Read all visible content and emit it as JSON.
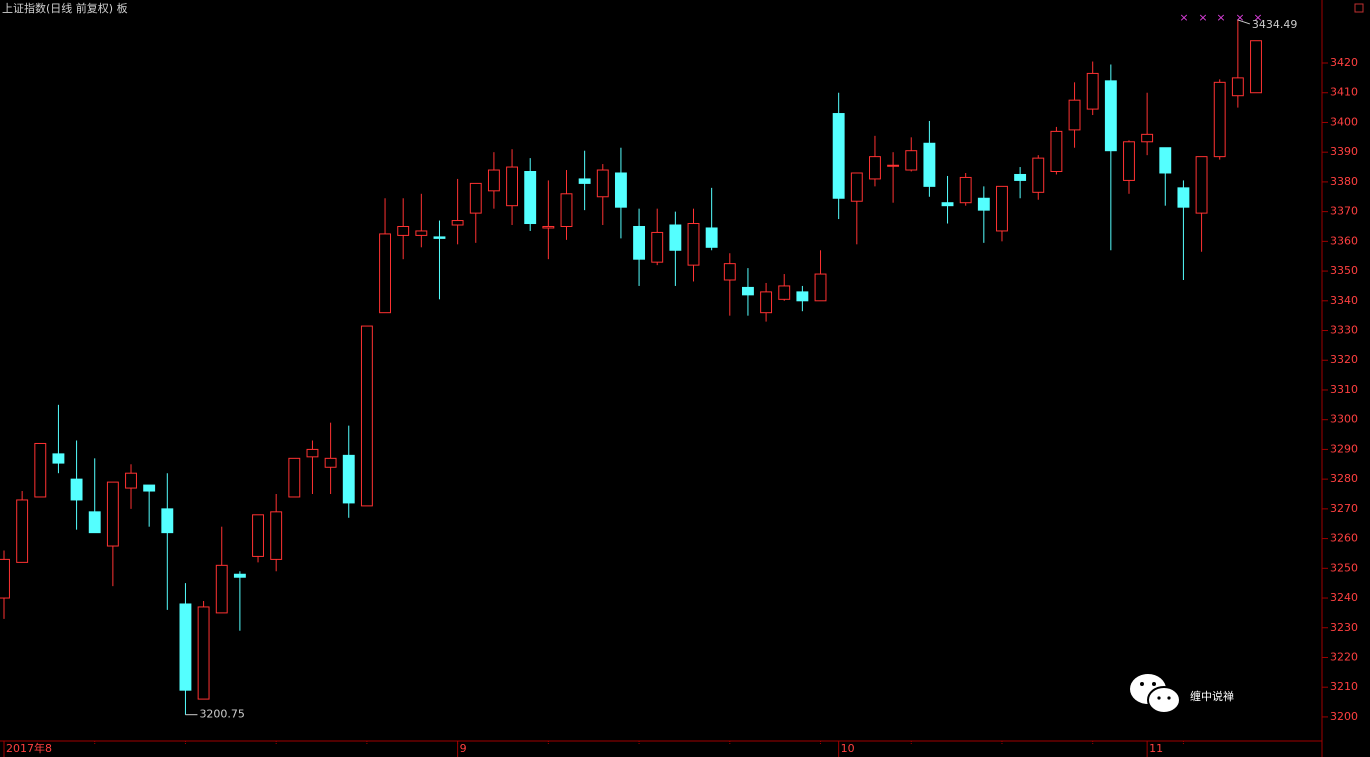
{
  "chart_data": {
    "type": "candlestick",
    "title": "上证指数(日线 前复权) 板",
    "watermark": "缠中说禅",
    "categories": [
      "2017年8",
      null,
      null,
      null,
      null,
      null,
      null,
      null,
      null,
      null,
      null,
      null,
      null,
      null,
      null,
      null,
      null,
      null,
      null,
      null,
      null,
      null,
      null,
      null,
      null,
      "9",
      null,
      null,
      null,
      null,
      null,
      null,
      null,
      null,
      null,
      null,
      null,
      null,
      null,
      null,
      null,
      null,
      null,
      null,
      null,
      null,
      "10",
      null,
      null,
      null,
      null,
      null,
      null,
      null,
      null,
      null,
      null,
      null,
      null,
      null,
      null,
      null,
      null,
      "11",
      null,
      null,
      null,
      null,
      null,
      null
    ],
    "open": [
      3240,
      3252,
      3274,
      3288.5,
      3280,
      3269,
      3257.5,
      3277,
      3278,
      3270,
      3238,
      3206,
      3235,
      3248,
      3254,
      3253,
      3274,
      3287.5,
      3284,
      3288,
      3271,
      3336,
      3362,
      3362,
      3361.5,
      3365.5,
      3369.5,
      3377,
      3372,
      3383.5,
      3364.5,
      3365,
      3381,
      3375,
      3383,
      3365,
      3353,
      3365.5,
      3352,
      3364.5,
      3347,
      3344.5,
      3336,
      3340.5,
      3343,
      3340,
      3403,
      3373.5,
      3381,
      3385.3,
      3384,
      3393,
      3373,
      3373,
      3374.5,
      3363.5,
      3382.5,
      3376.5,
      3383.5,
      3397.5,
      3404.5,
      3414,
      3380.5,
      3393.5,
      3391.5,
      3378,
      3369.5,
      3388.5,
      3409,
      3410
    ],
    "high": [
      3256,
      3276,
      3292,
      3305,
      3293,
      3287,
      3279,
      3285,
      3278,
      3282,
      3245,
      3239,
      3264,
      3249,
      3268,
      3275,
      3287,
      3293,
      3299,
      3298,
      3331.5,
      3374.5,
      3374.5,
      3376,
      3367,
      3381,
      3379.5,
      3390,
      3391,
      3388,
      3380.5,
      3384,
      3390.5,
      3386,
      3391.5,
      3371,
      3371,
      3370,
      3371,
      3378,
      3356,
      3351,
      3346,
      3349,
      3345,
      3357,
      3410,
      3383,
      3395.5,
      3390,
      3395,
      3400.5,
      3382,
      3383,
      3378.5,
      3378.5,
      3385,
      3389,
      3398.5,
      3413.5,
      3420.5,
      3419.5,
      3394,
      3410,
      3391.5,
      3380.5,
      3388.5,
      3414.5,
      3434.49,
      3427.5
    ],
    "low": [
      3233,
      3252,
      3274,
      3282,
      3263,
      3262,
      3244,
      3270,
      3264,
      3236,
      3200.75,
      3206,
      3235,
      3229,
      3252,
      3249,
      3274,
      3275,
      3275,
      3267,
      3271,
      3336,
      3354,
      3358,
      3340.5,
      3359,
      3359.5,
      3371,
      3365.5,
      3363.5,
      3354,
      3360.5,
      3370.5,
      3365.5,
      3361,
      3345,
      3352,
      3345,
      3346.5,
      3357,
      3335,
      3335,
      3333,
      3340,
      3336.5,
      3340,
      3367.5,
      3359,
      3378.5,
      3373,
      3383.5,
      3375,
      3366,
      3372,
      3359.5,
      3360,
      3374.5,
      3374,
      3382.5,
      3391.5,
      3402.5,
      3357,
      3376,
      3389,
      3372,
      3347,
      3356.5,
      3387.5,
      3405,
      3410
    ],
    "close": [
      3253,
      3273,
      3292,
      3285.4,
      3273,
      3262,
      3279,
      3282,
      3276,
      3262,
      3209,
      3237,
      3251,
      3247,
      3268,
      3269,
      3287,
      3290,
      3287,
      3272,
      3331.5,
      3362.5,
      3365,
      3363.5,
      3361,
      3367,
      3379.5,
      3384,
      3385,
      3366,
      3365,
      3376,
      3379.5,
      3384,
      3371.5,
      3354,
      3363,
      3357,
      3366,
      3358,
      3352.5,
      3342,
      3343,
      3345,
      3340,
      3349,
      3374.5,
      3383,
      3388.5,
      3385.6,
      3390.5,
      3378.5,
      3372,
      3381.5,
      3370.5,
      3378.5,
      3380.5,
      3388,
      3397,
      3407.5,
      3416.5,
      3390.5,
      3393.5,
      3396,
      3383,
      3371.5,
      3388.5,
      3413.5,
      3415,
      3427.5
    ],
    "up_color": "#ff3232",
    "down_color": "#54ffff",
    "ylim": [
      3191.9,
      3441.2
    ],
    "yticks": [
      3200,
      3210,
      3220,
      3230,
      3240,
      3250,
      3260,
      3270,
      3280,
      3290,
      3300,
      3310,
      3320,
      3330,
      3340,
      3350,
      3360,
      3370,
      3380,
      3390,
      3400,
      3410,
      3420
    ]
  }
}
